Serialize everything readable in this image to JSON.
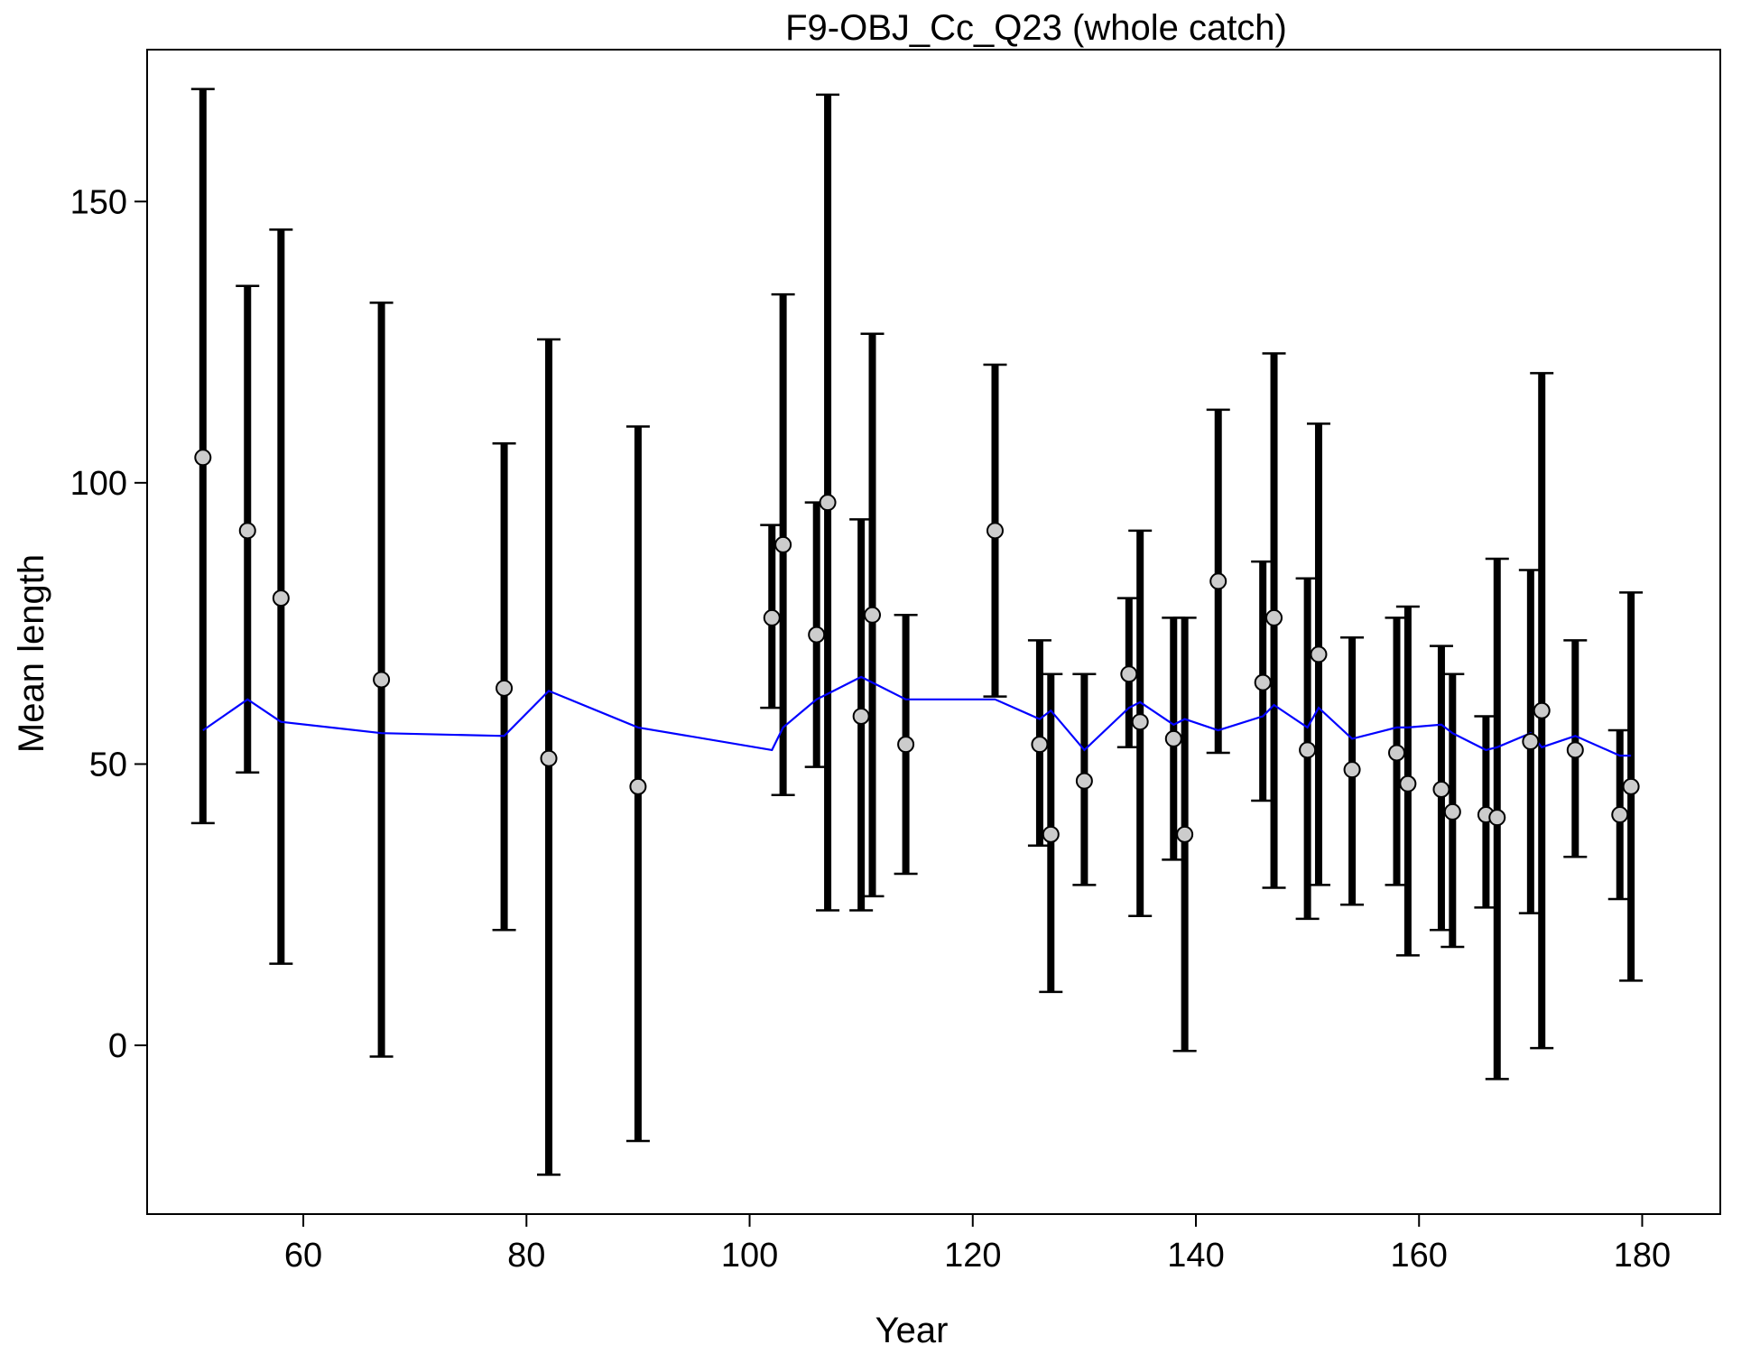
{
  "chart_data": {
    "type": "scatter",
    "title": "F9-OBJ_Cc_Q23 (whole catch)",
    "xlabel": "Year",
    "ylabel": "Mean length",
    "xlim": [
      46,
      187
    ],
    "ylim": [
      -30,
      177
    ],
    "xticks": [
      60,
      80,
      100,
      120,
      140,
      160,
      180
    ],
    "yticks": [
      0,
      50,
      100,
      150
    ],
    "grid": false,
    "colors": {
      "observed": "#000000",
      "marker_fill": "#cccccc",
      "expected": "#0000ff"
    },
    "series": [
      {
        "kind": "errorbar",
        "points": [
          {
            "x": 51,
            "y": 104.5,
            "lo": 39.5,
            "hi": 170
          },
          {
            "x": 55,
            "y": 91.5,
            "lo": 48.5,
            "hi": 135
          },
          {
            "x": 58,
            "y": 79.5,
            "lo": 14.5,
            "hi": 145
          },
          {
            "x": 67,
            "y": 65,
            "lo": -2,
            "hi": 132
          },
          {
            "x": 78,
            "y": 63.5,
            "lo": 20.5,
            "hi": 107
          },
          {
            "x": 82,
            "y": 51,
            "lo": -23,
            "hi": 125.5
          },
          {
            "x": 90,
            "y": 46,
            "lo": -17,
            "hi": 110
          },
          {
            "x": 102,
            "y": 76,
            "lo": 60,
            "hi": 92.5
          },
          {
            "x": 103,
            "y": 89,
            "lo": 44.5,
            "hi": 133.5
          },
          {
            "x": 106,
            "y": 73,
            "lo": 49.5,
            "hi": 96.5
          },
          {
            "x": 107,
            "y": 96.5,
            "lo": 24,
            "hi": 169
          },
          {
            "x": 110,
            "y": 58.5,
            "lo": 24,
            "hi": 93.5
          },
          {
            "x": 111,
            "y": 76.5,
            "lo": 26.5,
            "hi": 126.5
          },
          {
            "x": 114,
            "y": 53.5,
            "lo": 30.5,
            "hi": 76.5
          },
          {
            "x": 122,
            "y": 91.5,
            "lo": 62,
            "hi": 121
          },
          {
            "x": 126,
            "y": 53.5,
            "lo": 35.5,
            "hi": 72
          },
          {
            "x": 127,
            "y": 37.5,
            "lo": 9.5,
            "hi": 66
          },
          {
            "x": 130,
            "y": 47,
            "lo": 28.5,
            "hi": 66
          },
          {
            "x": 134,
            "y": 66,
            "lo": 53,
            "hi": 79.5
          },
          {
            "x": 135,
            "y": 57.5,
            "lo": 23,
            "hi": 91.5
          },
          {
            "x": 138,
            "y": 54.5,
            "lo": 33,
            "hi": 76
          },
          {
            "x": 139,
            "y": 37.5,
            "lo": -1,
            "hi": 76
          },
          {
            "x": 142,
            "y": 82.5,
            "lo": 52,
            "hi": 113
          },
          {
            "x": 146,
            "y": 64.5,
            "lo": 43.5,
            "hi": 86
          },
          {
            "x": 147,
            "y": 76,
            "lo": 28,
            "hi": 123
          },
          {
            "x": 150,
            "y": 52.5,
            "lo": 22.5,
            "hi": 83
          },
          {
            "x": 151,
            "y": 69.5,
            "lo": 28.5,
            "hi": 110.5
          },
          {
            "x": 154,
            "y": 49,
            "lo": 25,
            "hi": 72.5
          },
          {
            "x": 158,
            "y": 52,
            "lo": 28.5,
            "hi": 76
          },
          {
            "x": 159,
            "y": 46.5,
            "lo": 16,
            "hi": 78
          },
          {
            "x": 162,
            "y": 45.5,
            "lo": 20.5,
            "hi": 71
          },
          {
            "x": 163,
            "y": 41.5,
            "lo": 17.5,
            "hi": 66
          },
          {
            "x": 166,
            "y": 41,
            "lo": 24.5,
            "hi": 58.5
          },
          {
            "x": 167,
            "y": 40.5,
            "lo": -6,
            "hi": 86.5
          },
          {
            "x": 170,
            "y": 54,
            "lo": 23.5,
            "hi": 84.5
          },
          {
            "x": 171,
            "y": 59.5,
            "lo": -0.5,
            "hi": 119.5
          },
          {
            "x": 174,
            "y": 52.5,
            "lo": 33.5,
            "hi": 72
          },
          {
            "x": 178,
            "y": 41,
            "lo": 26,
            "hi": 56
          },
          {
            "x": 179,
            "y": 46,
            "lo": 11.5,
            "hi": 80.5
          }
        ]
      },
      {
        "kind": "line",
        "x": [
          51,
          55,
          58,
          67,
          78,
          82,
          90,
          102,
          103,
          106,
          107,
          110,
          111,
          114,
          122,
          126,
          127,
          130,
          134,
          135,
          138,
          139,
          142,
          146,
          147,
          150,
          151,
          154,
          158,
          159,
          162,
          163,
          166,
          167,
          170,
          171,
          174,
          178,
          179
        ],
        "y": [
          56,
          61.5,
          57.5,
          55.5,
          55,
          63,
          56.5,
          52.5,
          56.5,
          61.5,
          62.5,
          65.5,
          64.5,
          61.5,
          61.5,
          58,
          59.5,
          52.5,
          60,
          61,
          57,
          58,
          56,
          58.5,
          60.5,
          56.5,
          60,
          54.5,
          56.5,
          56.5,
          57,
          55.5,
          52.5,
          53,
          55.5,
          53,
          55,
          51.5,
          51.5
        ]
      }
    ]
  }
}
